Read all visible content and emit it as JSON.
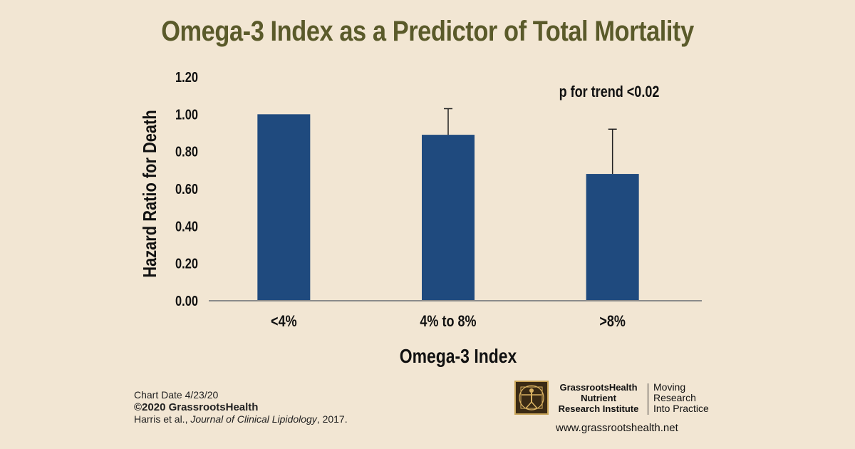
{
  "chart_data": {
    "type": "bar",
    "title": "Omega-3 Index as a Predictor of Total Mortality",
    "xlabel": "Omega-3 Index",
    "ylabel": "Hazard Ratio for Death",
    "categories": [
      "<4%",
      "4% to 8%",
      ">8%"
    ],
    "values": [
      1.0,
      0.89,
      0.68
    ],
    "error_upper": [
      null,
      1.03,
      0.92
    ],
    "ylim": [
      0,
      1.2
    ],
    "yticks": [
      "0.00",
      "0.20",
      "0.40",
      "0.60",
      "0.80",
      "1.00",
      "1.20"
    ],
    "ytick_values": [
      0,
      0.2,
      0.4,
      0.6,
      0.8,
      1.0,
      1.2
    ],
    "annotation": "p for trend <0.02",
    "bar_color": "#1f4a7e",
    "grid": false,
    "legend": "none"
  },
  "footer": {
    "chart_date": "Chart Date 4/23/20",
    "copyright": "©2020 GrassrootsHealth",
    "citation_authors": "Harris et al., ",
    "citation_journal": "Journal of Clinical Lipidology",
    "citation_year": ", 2017."
  },
  "branding": {
    "org_line1": "GrassrootsHealth",
    "org_line2": "Nutrient",
    "org_line3": "Research Institute",
    "tagline1": "Moving",
    "tagline2": "Research",
    "tagline3": "Into Practice",
    "website": "www.grassrootshealth.net",
    "logo_icon": "vitruvian-man-icon"
  },
  "colors": {
    "background": "#f2e6d3",
    "title": "#5a5a2a",
    "bar": "#1f4a7e"
  }
}
